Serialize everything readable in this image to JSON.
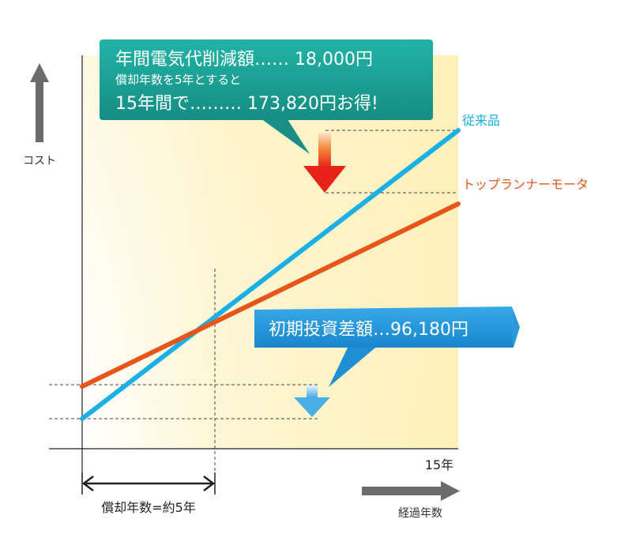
{
  "chart_data": {
    "type": "line",
    "xlabel": "経過年数",
    "ylabel": "コスト",
    "x_tick_end": "15年",
    "series": [
      {
        "name": "従来品",
        "color": "#1ab0e6",
        "x": [
          0,
          15
        ],
        "y": [
          0,
          100
        ]
      },
      {
        "name": "トップランナーモータ",
        "color": "#e8551a",
        "x": [
          0,
          15
        ],
        "y": [
          11.2,
          74.5
        ]
      }
    ],
    "grid": false,
    "background_color": "#fef3c4",
    "annotations": {
      "top_callout": {
        "line1": "年間電気代削減額…… 18,000円",
        "line2": "償却年数を5年とすると",
        "line3": "15年間で……… 173,820円お得!",
        "color": "#1aa69b"
      },
      "mid_callout": {
        "text": "初期投資差額…96,180円",
        "color": "#2196d8"
      },
      "payback_label": "償却年数=約5年",
      "payback_year": 5,
      "savings_arrow_color": "#e8231a",
      "initial_arrow_color": "#5ab8e8"
    }
  }
}
